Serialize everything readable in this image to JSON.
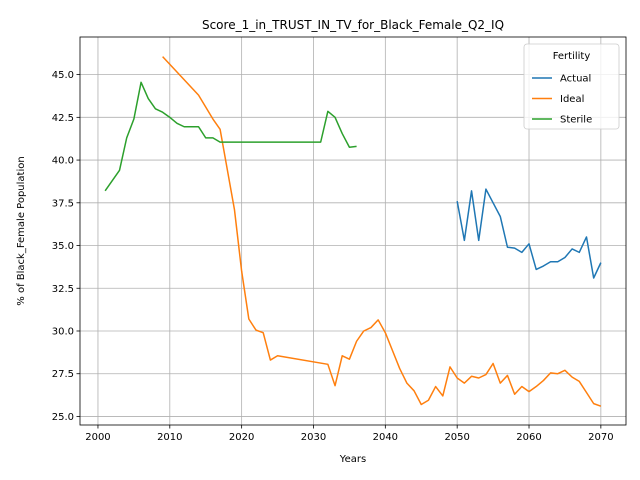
{
  "chart_data": {
    "type": "line",
    "title": "Score_1_in_TRUST_IN_TV_for_Black_Female_Q2_IQ",
    "xlabel": "Years",
    "ylabel": "% of Black_Female Population",
    "xlim": [
      1997.5,
      2073.5
    ],
    "ylim": [
      24.5,
      47.2
    ],
    "xticks": [
      "2000",
      "2010",
      "2020",
      "2030",
      "2040",
      "2050",
      "2060",
      "2070"
    ],
    "yticks": [
      "25.0",
      "27.5",
      "30.0",
      "32.5",
      "35.0",
      "37.5",
      "40.0",
      "42.5",
      "45.0"
    ],
    "grid": true,
    "legend": {
      "title": "Fertility",
      "position": "top-right"
    },
    "series": [
      {
        "name": "Actual",
        "color": "#1f77b4",
        "x": [
          2050,
          2051,
          2052,
          2053,
          2054,
          2055,
          2056,
          2057,
          2058,
          2059,
          2060,
          2061,
          2062,
          2063,
          2064,
          2065,
          2066,
          2067,
          2068,
          2069,
          2070
        ],
        "y": [
          37.6,
          35.3,
          38.2,
          35.3,
          38.3,
          37.5,
          36.7,
          34.9,
          34.85,
          34.6,
          35.1,
          33.6,
          33.8,
          34.05,
          34.05,
          34.3,
          34.8,
          34.6,
          35.5,
          33.1,
          34.0
        ]
      },
      {
        "name": "Ideal",
        "color": "#ff7f0e",
        "x": [
          2009,
          2014,
          2016,
          2017,
          2019,
          2020,
          2021,
          2022,
          2023,
          2024,
          2025,
          2032,
          2033,
          2034,
          2035,
          2036,
          2037,
          2038,
          2039,
          2040,
          2041,
          2042,
          2043,
          2044,
          2045,
          2046,
          2047,
          2048,
          2049,
          2050,
          2051,
          2052,
          2053,
          2054,
          2055,
          2056,
          2057,
          2058,
          2059,
          2060,
          2061,
          2062,
          2063,
          2064,
          2065,
          2066,
          2067,
          2068,
          2069,
          2070
        ],
        "y": [
          46.05,
          43.8,
          42.4,
          41.8,
          37.1,
          33.5,
          30.7,
          30.05,
          29.9,
          28.3,
          28.55,
          28.05,
          26.8,
          28.55,
          28.35,
          29.4,
          30.0,
          30.2,
          30.65,
          29.9,
          28.85,
          27.8,
          26.95,
          26.5,
          25.7,
          25.95,
          26.75,
          26.2,
          27.9,
          27.25,
          26.95,
          27.35,
          27.25,
          27.45,
          28.1,
          26.95,
          27.4,
          26.3,
          26.75,
          26.45,
          26.75,
          27.1,
          27.55,
          27.5,
          27.7,
          27.3,
          27.05,
          26.4,
          25.75,
          25.6
        ]
      },
      {
        "name": "Sterile",
        "color": "#2ca02c",
        "x": [
          2001,
          2003,
          2004,
          2005,
          2006,
          2007,
          2008,
          2009,
          2010,
          2011,
          2012,
          2013,
          2014,
          2015,
          2016,
          2017,
          2018,
          2031,
          2032,
          2033,
          2034,
          2035,
          2036
        ],
        "y": [
          38.2,
          39.4,
          41.3,
          42.4,
          44.55,
          43.6,
          43.0,
          42.8,
          42.5,
          42.15,
          41.95,
          41.95,
          41.95,
          41.3,
          41.3,
          41.05,
          41.05,
          41.05,
          42.85,
          42.5,
          41.55,
          40.75,
          40.8
        ]
      }
    ]
  }
}
